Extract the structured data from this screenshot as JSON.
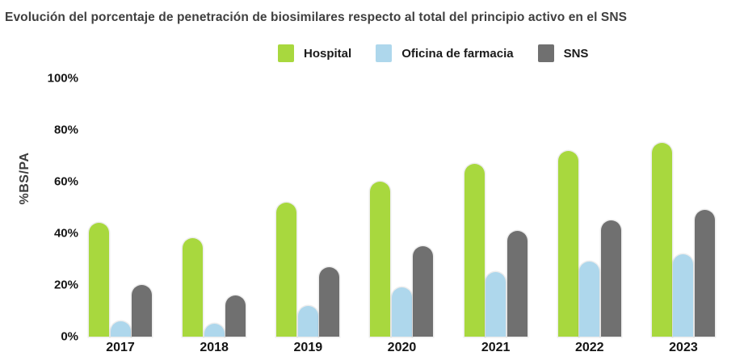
{
  "chart_data": {
    "type": "bar",
    "title": "Evolución del porcentaje de penetración de biosimilares respecto al total del principio activo en el SNS",
    "ylabel": "%BS/PA",
    "xlabel": "",
    "ylim": [
      0,
      100
    ],
    "grid": false,
    "legend_position": "top-center",
    "categories": [
      "2017",
      "2018",
      "2019",
      "2020",
      "2021",
      "2022",
      "2023"
    ],
    "yticks": [
      {
        "value": 0,
        "label": "0%"
      },
      {
        "value": 20,
        "label": "20%"
      },
      {
        "value": 40,
        "label": "40%"
      },
      {
        "value": 60,
        "label": "60%"
      },
      {
        "value": 80,
        "label": "80%"
      },
      {
        "value": 100,
        "label": "100%"
      }
    ],
    "series": [
      {
        "name": "Hospital",
        "slug": "hospital",
        "color": "#a8d83e",
        "values": [
          44,
          38,
          52,
          60,
          67,
          72,
          75
        ]
      },
      {
        "name": "Oficina de farmacia",
        "slug": "oficina",
        "color": "#aed7ec",
        "values": [
          6,
          5,
          12,
          19,
          25,
          29,
          32
        ]
      },
      {
        "name": "SNS",
        "slug": "sns",
        "color": "#707070",
        "values": [
          20,
          16,
          27,
          35,
          41,
          45,
          49
        ]
      }
    ]
  },
  "legend": {
    "items": [
      {
        "label": "Hospital",
        "color": "#a8d83e"
      },
      {
        "label": "Oficina de farmacia",
        "color": "#aed7ec"
      },
      {
        "label": "SNS",
        "color": "#707070"
      }
    ]
  }
}
